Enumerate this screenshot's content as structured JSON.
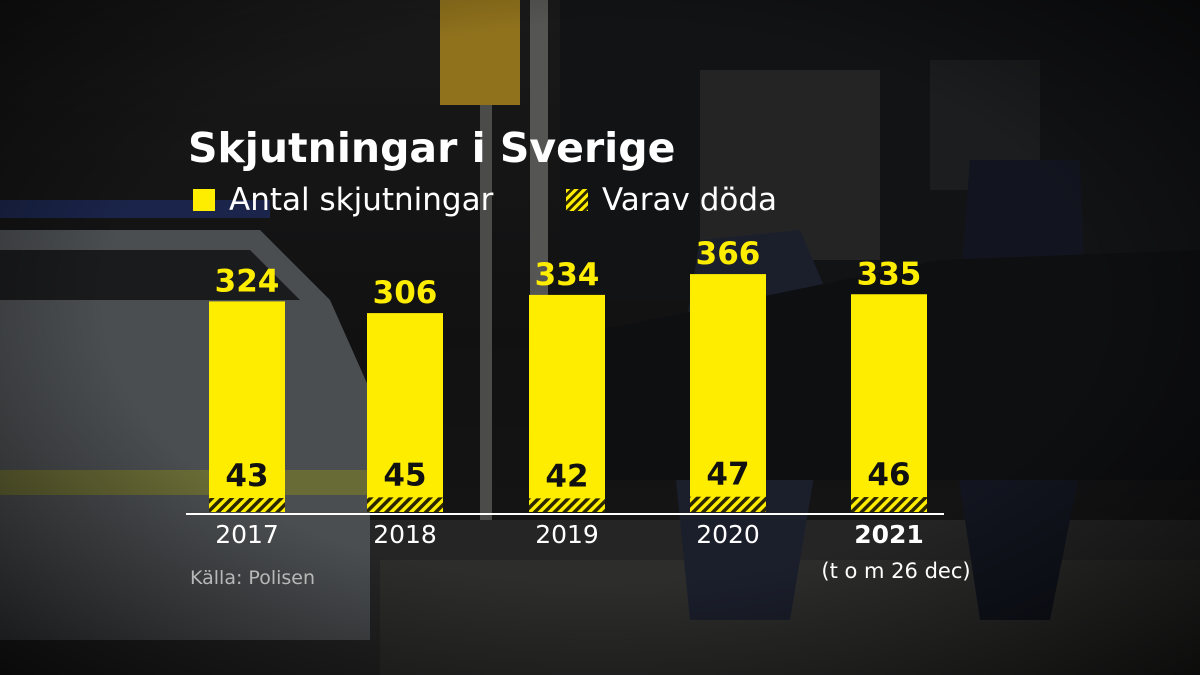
{
  "chart_data": {
    "type": "bar",
    "title": "Skjutningar i Sverige",
    "categories": [
      "2017",
      "2018",
      "2019",
      "2020",
      "2021"
    ],
    "category_note": {
      "2021": "(t o m 26 dec)"
    },
    "highlighted_category": "2021",
    "series": [
      {
        "name": "Antal skjutningar",
        "values": [
          324,
          306,
          334,
          366,
          335
        ],
        "color": "#ffed00",
        "pattern": "solid"
      },
      {
        "name": "Varav döda",
        "values": [
          43,
          45,
          42,
          47,
          46
        ],
        "color": "#ffed00",
        "pattern": "hatched"
      }
    ],
    "ylim": [
      0,
      400
    ],
    "grid": false,
    "legend_position": "top-left",
    "source": "Källa: Polisen",
    "label_color": "#ffed00",
    "inner_label_color": "#111111"
  }
}
